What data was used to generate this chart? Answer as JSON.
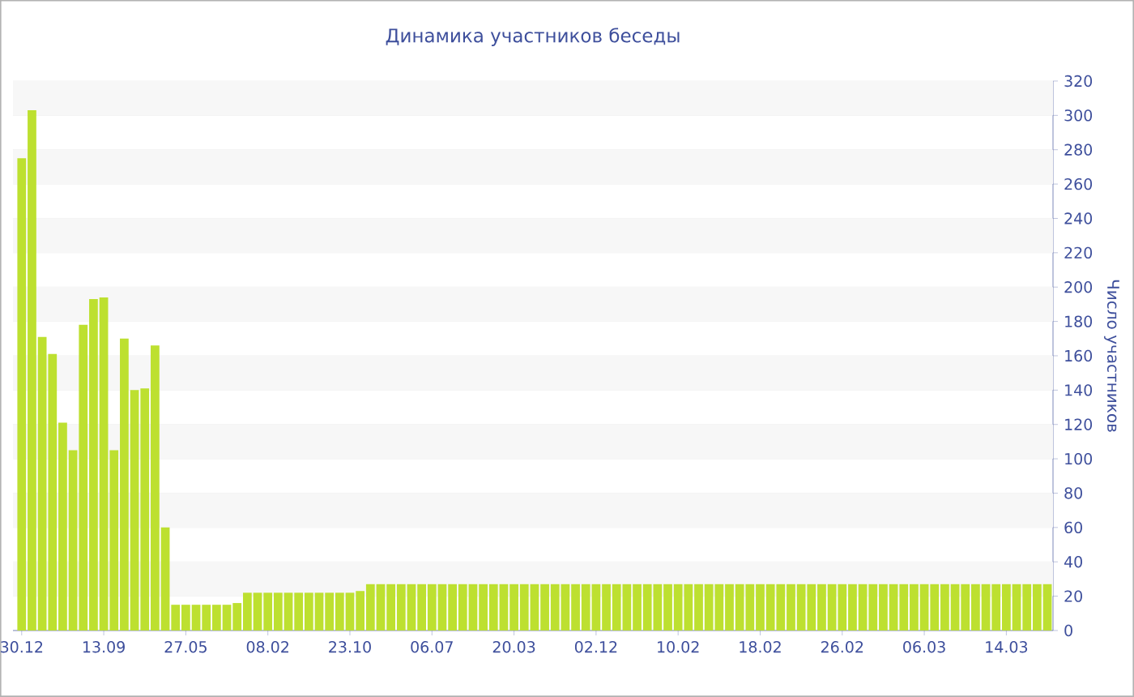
{
  "chart_data": {
    "type": "bar",
    "title": "Динамика участников беседы",
    "ylabel": "Число участников",
    "categories": [
      "30.12",
      null,
      null,
      null,
      null,
      null,
      null,
      null,
      "13.09",
      null,
      null,
      null,
      null,
      null,
      null,
      null,
      "27.05",
      null,
      null,
      null,
      null,
      null,
      null,
      null,
      "08.02",
      null,
      null,
      null,
      null,
      null,
      null,
      null,
      "23.10",
      null,
      null,
      null,
      null,
      null,
      null,
      null,
      "06.07",
      null,
      null,
      null,
      null,
      null,
      null,
      null,
      "20.03",
      null,
      null,
      null,
      null,
      null,
      null,
      null,
      "02.12",
      null,
      null,
      null,
      null,
      null,
      null,
      null,
      "10.02",
      null,
      null,
      null,
      null,
      null,
      null,
      null,
      "18.02",
      null,
      null,
      null,
      null,
      null,
      null,
      null,
      "26.02",
      null,
      null,
      null,
      null,
      null,
      null,
      null,
      "06.03",
      null,
      null,
      null,
      null,
      null,
      null,
      null,
      "14.03",
      null,
      null,
      null,
      null
    ],
    "values": [
      275,
      303,
      171,
      161,
      121,
      105,
      178,
      193,
      194,
      105,
      170,
      140,
      141,
      166,
      60,
      15,
      15,
      15,
      15,
      15,
      15,
      16,
      22,
      22,
      22,
      22,
      22,
      22,
      22,
      22,
      22,
      22,
      22,
      23,
      27,
      27,
      27,
      27,
      27,
      27,
      27,
      27,
      27,
      27,
      27,
      27,
      27,
      27,
      27,
      27,
      27,
      27,
      27,
      27,
      27,
      27,
      27,
      27,
      27,
      27,
      27,
      27,
      27,
      27,
      27,
      27,
      27,
      27,
      27,
      27,
      27,
      27,
      27,
      27,
      27,
      27,
      27,
      27,
      27,
      27,
      27,
      27,
      27,
      27,
      27,
      27,
      27,
      27,
      27,
      27,
      27,
      27,
      27,
      27,
      27,
      27,
      27,
      27,
      27,
      27,
      27
    ],
    "color": "#bde030",
    "ylim": [
      0,
      320
    ],
    "yticks": [
      0,
      20,
      40,
      60,
      80,
      100,
      120,
      140,
      160,
      180,
      200,
      220,
      240,
      260,
      280,
      300,
      320
    ],
    "grid": "y"
  }
}
